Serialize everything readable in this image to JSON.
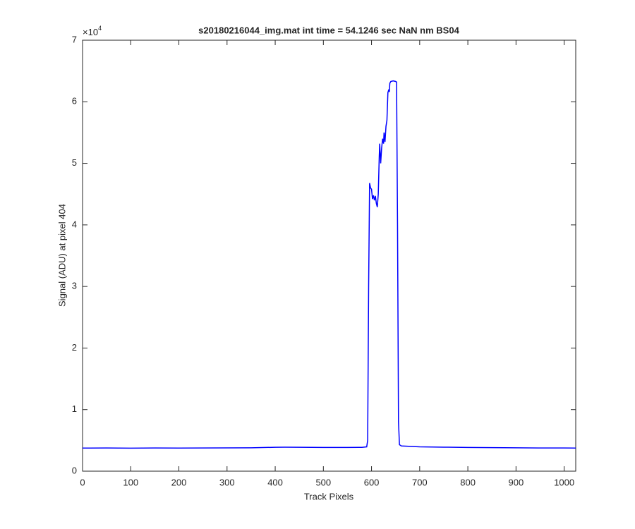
{
  "chart_data": {
    "type": "line",
    "title": "s20180216044_img.mat int time = 54.1246 sec  NaN nm BS04",
    "x_label": "Track Pixels",
    "y_label": "Signal (ADU) at pixel 404",
    "y_offset_label": {
      "base": "×10",
      "exponent": "4"
    },
    "x": [
      0,
      50,
      100,
      150,
      200,
      250,
      300,
      350,
      400,
      420,
      450,
      500,
      550,
      580,
      590,
      592,
      594,
      596,
      598,
      600,
      602,
      604,
      606,
      608,
      610,
      612,
      614,
      616,
      617,
      619,
      621,
      623,
      625,
      626,
      628,
      630,
      632,
      634,
      636,
      637,
      638,
      640,
      645,
      650,
      652,
      654,
      656,
      658,
      662,
      700,
      750,
      800,
      850,
      900,
      950,
      1000,
      1024
    ],
    "series": [
      {
        "name": "signal",
        "color": "#0000ff",
        "values": [
          3750,
          3760,
          3740,
          3760,
          3750,
          3770,
          3780,
          3800,
          3880,
          3900,
          3880,
          3850,
          3850,
          3870,
          3950,
          5000,
          30000,
          46800,
          46000,
          45800,
          44200,
          44800,
          44000,
          44700,
          43500,
          42900,
          45000,
          51000,
          53200,
          50000,
          52500,
          54000,
          53200,
          55000,
          53500,
          56000,
          57000,
          61500,
          62000,
          61600,
          63000,
          63300,
          63400,
          63300,
          63200,
          40000,
          8000,
          4300,
          4100,
          3950,
          3900,
          3850,
          3820,
          3800,
          3770,
          3760,
          3750
        ]
      }
    ],
    "xlim": [
      0,
      1024
    ],
    "ylim": [
      0,
      70000
    ],
    "xticks": [
      0,
      100,
      200,
      300,
      400,
      500,
      600,
      700,
      800,
      900,
      1000
    ],
    "yticks": [
      {
        "value": 0,
        "label": "0"
      },
      {
        "value": 10000,
        "label": "1"
      },
      {
        "value": 20000,
        "label": "2"
      },
      {
        "value": 30000,
        "label": "3"
      },
      {
        "value": 40000,
        "label": "4"
      },
      {
        "value": 50000,
        "label": "5"
      },
      {
        "value": 60000,
        "label": "6"
      },
      {
        "value": 70000,
        "label": "7"
      }
    ],
    "grid": false
  }
}
